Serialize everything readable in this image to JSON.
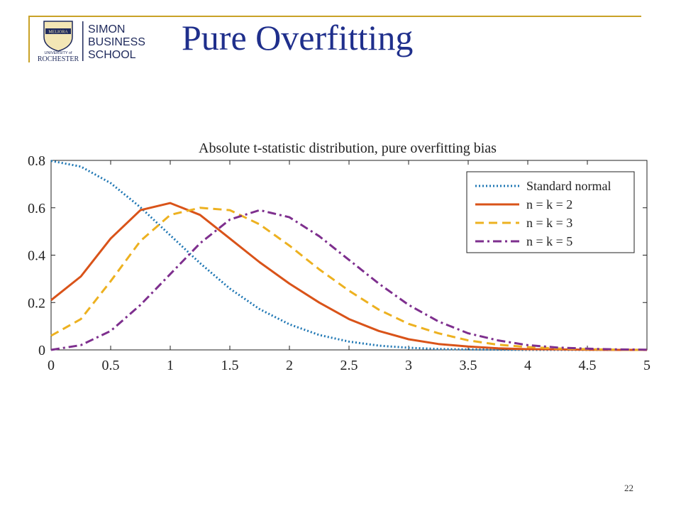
{
  "slide": {
    "title": "Pure Overfitting",
    "page_number": "22"
  },
  "logo": {
    "seal_text": "MELIORA",
    "university_line1": "UNIVERSITY of",
    "university_line2": "ROCHESTER",
    "school_line1": "SIMON",
    "school_line2": "BUSINESS",
    "school_line3": "SCHOOL"
  },
  "colors": {
    "title": "#1f2f8c",
    "accent_rule": "#c9a227",
    "logo_navy": "#1f2a5c"
  },
  "chart_data": {
    "type": "line",
    "title": "Absolute t-statistic distribution, pure overfitting bias",
    "xlabel": "",
    "ylabel": "",
    "xlim": [
      0,
      5
    ],
    "ylim": [
      0,
      0.8
    ],
    "xticks": [
      "0",
      "0.5",
      "1",
      "1.5",
      "2",
      "2.5",
      "3",
      "3.5",
      "4",
      "4.5",
      "5"
    ],
    "yticks": [
      "0",
      "0.2",
      "0.4",
      "0.6",
      "0.8"
    ],
    "grid": false,
    "legend_position": "top-right",
    "x": [
      0,
      0.25,
      0.5,
      0.75,
      1,
      1.25,
      1.5,
      1.75,
      2,
      2.25,
      2.5,
      2.75,
      3,
      3.25,
      3.5,
      3.75,
      4,
      4.25,
      4.5,
      4.75,
      5
    ],
    "series": [
      {
        "name": "Standard normal",
        "color": "#1f77b4",
        "dash": "dotted",
        "values": [
          0.798,
          0.774,
          0.704,
          0.602,
          0.484,
          0.366,
          0.259,
          0.172,
          0.108,
          0.063,
          0.035,
          0.018,
          0.009,
          0.004,
          0.002,
          0.001,
          0.0,
          0.0,
          0.0,
          0.0,
          0.0
        ]
      },
      {
        "name": "n = k = 2",
        "color": "#d95319",
        "dash": "solid",
        "values": [
          0.21,
          0.31,
          0.47,
          0.59,
          0.62,
          0.57,
          0.47,
          0.37,
          0.28,
          0.2,
          0.13,
          0.08,
          0.045,
          0.025,
          0.014,
          0.007,
          0.003,
          0.002,
          0.001,
          0.0,
          0.0
        ]
      },
      {
        "name": "n = k = 3",
        "color": "#edb120",
        "dash": "dashed",
        "values": [
          0.06,
          0.13,
          0.29,
          0.46,
          0.57,
          0.6,
          0.59,
          0.53,
          0.44,
          0.34,
          0.25,
          0.17,
          0.11,
          0.07,
          0.04,
          0.022,
          0.012,
          0.006,
          0.003,
          0.001,
          0.0
        ]
      },
      {
        "name": "n = k = 5",
        "color": "#7e2f8e",
        "dash": "dashdot",
        "values": [
          0.0,
          0.02,
          0.08,
          0.19,
          0.32,
          0.45,
          0.55,
          0.59,
          0.56,
          0.48,
          0.38,
          0.28,
          0.19,
          0.12,
          0.07,
          0.04,
          0.02,
          0.01,
          0.005,
          0.002,
          0.001
        ]
      }
    ]
  }
}
